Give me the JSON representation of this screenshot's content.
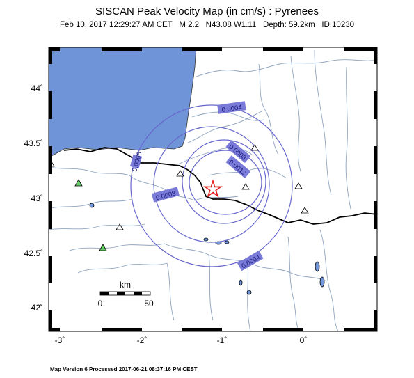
{
  "title": "SISCAN Peak Velocity Map (in cm/s) : Pyrenees",
  "event": {
    "date": "Feb 10, 2017 12:29:27 AM CET",
    "magnitude": "M 2.2",
    "location": "N43.08 W1.11",
    "depth": "Depth: 59.2km",
    "id": "ID:10230"
  },
  "lon_labels": [
    "-3˚",
    "-2˚",
    "-1˚",
    "0˚"
  ],
  "lat_labels": [
    "44˚",
    "43.5˚",
    "43˚",
    "42.5˚",
    "42˚"
  ],
  "contours": [
    "0.0004",
    "0.0006",
    "0.0008",
    "0.0012",
    "0.0004",
    "0.0008"
  ],
  "scale_bar": {
    "unit": "km",
    "min": "0",
    "max": "50"
  },
  "footer": "Map Version 6 Processed 2017-06-21 08:37:16 PM CEST",
  "colors": {
    "sea": "#7094d8",
    "river": "#8fa3c0",
    "contour": "#6666cc",
    "contour_label_bg": "#7a7ad8",
    "station_active": "#66cc66",
    "epicenter": "#e02020"
  }
}
